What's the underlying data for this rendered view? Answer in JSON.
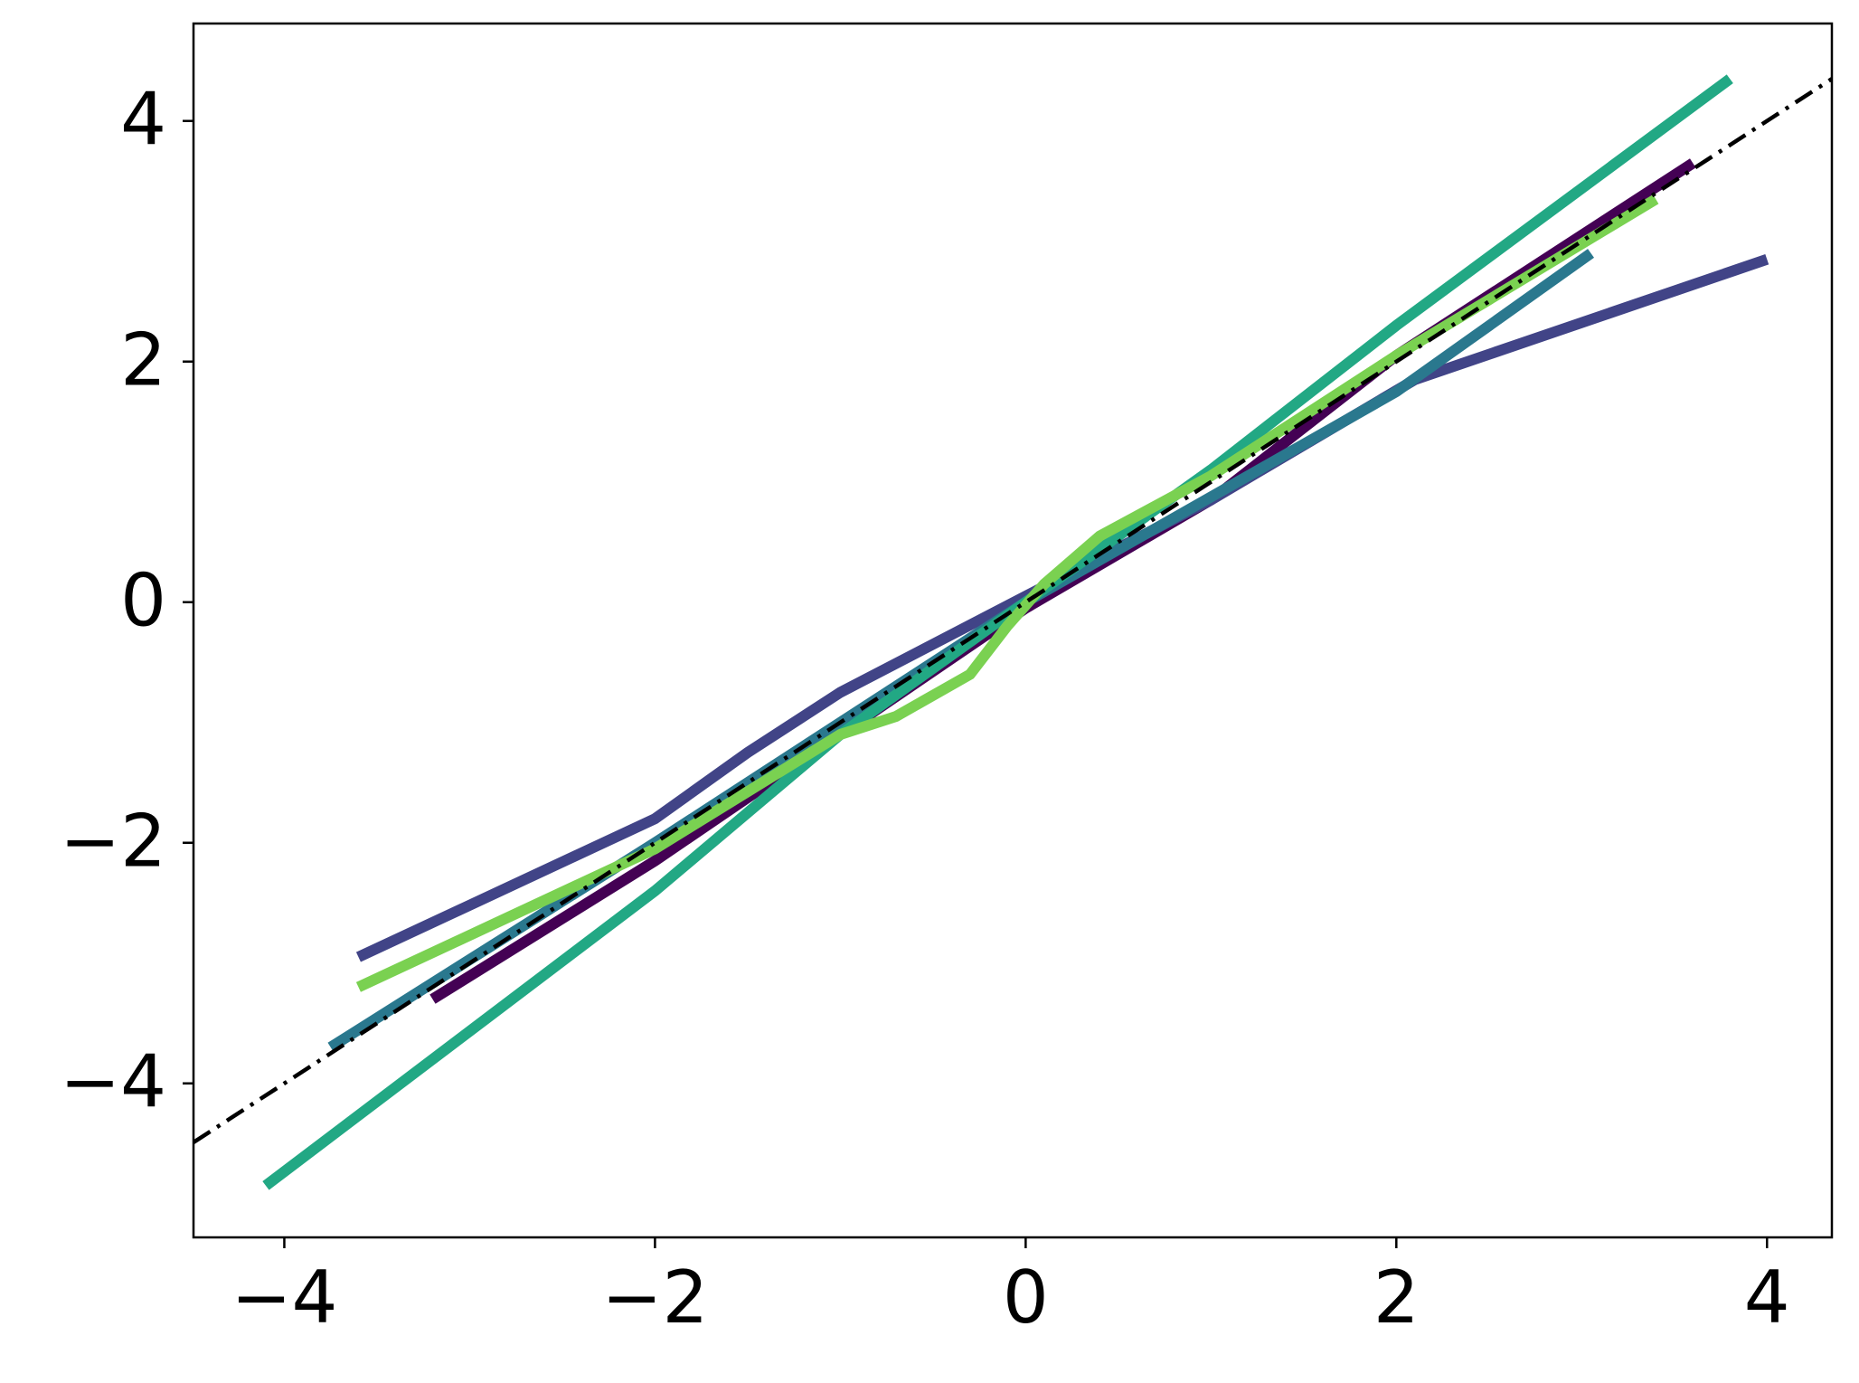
{
  "chart_data": {
    "type": "line",
    "xlim": [
      -4.49,
      4.35
    ],
    "ylim": [
      -5.28,
      4.81
    ],
    "xticks": [
      {
        "value": -4,
        "label": "−4"
      },
      {
        "value": -2,
        "label": "−2"
      },
      0,
      2,
      {
        "value": 4,
        "label": "4"
      }
    ],
    "yticks": [
      {
        "value": -4,
        "label": "−4"
      },
      {
        "value": -2,
        "label": "−2"
      },
      0,
      2,
      4
    ],
    "series": [
      {
        "color": "#440154",
        "x": [
          -3.2,
          -2,
          0,
          1,
          2,
          3.6
        ],
        "values": [
          -3.3,
          -2.15,
          -0.05,
          0.85,
          2.05,
          3.65
        ]
      },
      {
        "color": "#414487",
        "x": [
          -3.6,
          -2,
          -1.5,
          -1,
          0,
          1,
          2.1,
          4
        ],
        "values": [
          -2.95,
          -1.8,
          -1.25,
          -0.75,
          0.05,
          0.85,
          1.85,
          2.85
        ]
      },
      {
        "color": "#2a788e",
        "x": [
          -3.75,
          -2,
          0,
          2,
          3.05
        ],
        "values": [
          -3.7,
          -2.0,
          0.0,
          1.75,
          2.9
        ]
      },
      {
        "color": "#22a884",
        "x": [
          -4.1,
          -2,
          -1,
          0,
          1,
          2,
          3.8
        ],
        "values": [
          -4.85,
          -2.4,
          -1.1,
          0.0,
          1.1,
          2.3,
          4.35
        ]
      },
      {
        "color": "#7ad151",
        "x": [
          -3.6,
          -2,
          -1,
          -0.7,
          -0.3,
          -0.1,
          0.1,
          0.4,
          0.7,
          1,
          2,
          3.4
        ],
        "values": [
          -3.2,
          -2.05,
          -1.1,
          -0.95,
          -0.6,
          -0.2,
          0.15,
          0.55,
          0.8,
          1.05,
          2.05,
          3.35
        ]
      },
      {
        "color": "#000000",
        "linestyle": "dashdot",
        "x": [
          -4.49,
          4.35
        ],
        "values": [
          -4.49,
          4.35
        ]
      }
    ]
  }
}
